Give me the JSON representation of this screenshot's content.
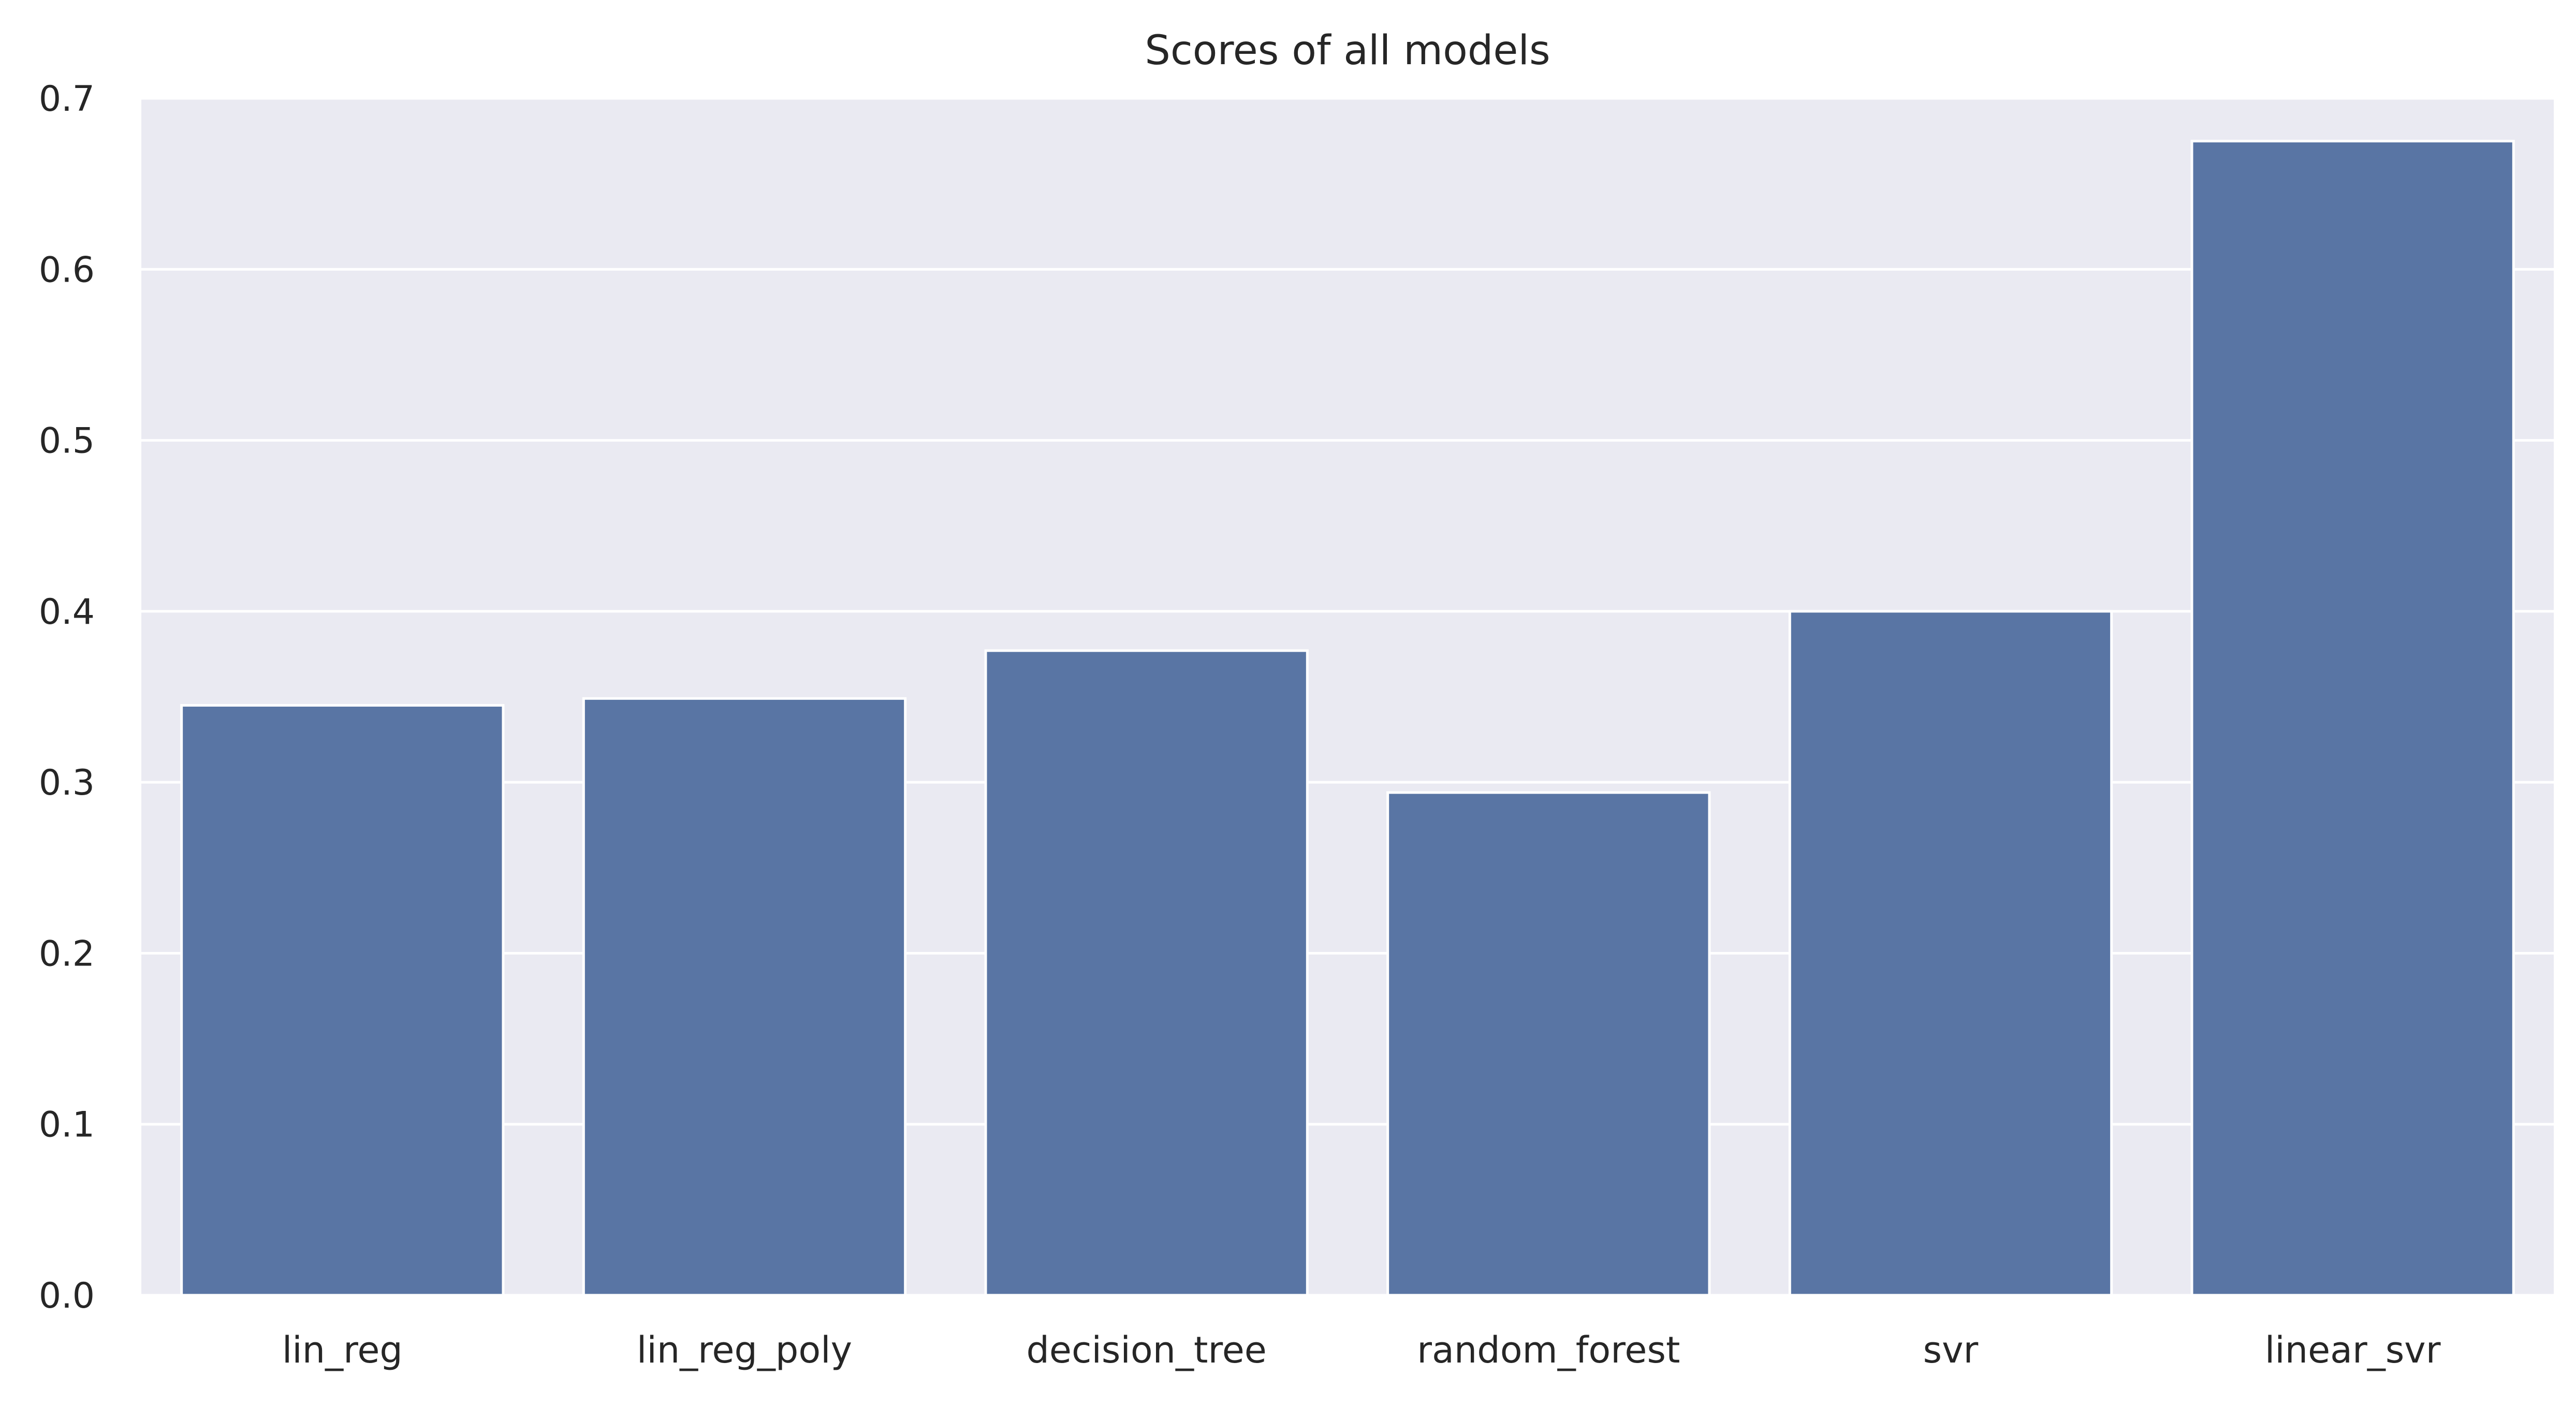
{
  "chart_data": {
    "type": "bar",
    "title": "Scores of all models",
    "xlabel": "",
    "ylabel": "",
    "categories": [
      "lin_reg",
      "lin_reg_poly",
      "decision_tree",
      "random_forest",
      "svr",
      "linear_svr"
    ],
    "values": [
      0.345,
      0.349,
      0.377,
      0.294,
      0.4,
      0.675
    ],
    "ylim": [
      0,
      0.7
    ],
    "yticks": [
      "0.0",
      "0.1",
      "0.2",
      "0.3",
      "0.4",
      "0.5",
      "0.6",
      "0.7"
    ],
    "grid": true,
    "legend": "none",
    "colors": {
      "bar": "#5975a4",
      "plot_background": "#eaeaf2",
      "grid": "#ffffff",
      "text": "#262626"
    }
  }
}
